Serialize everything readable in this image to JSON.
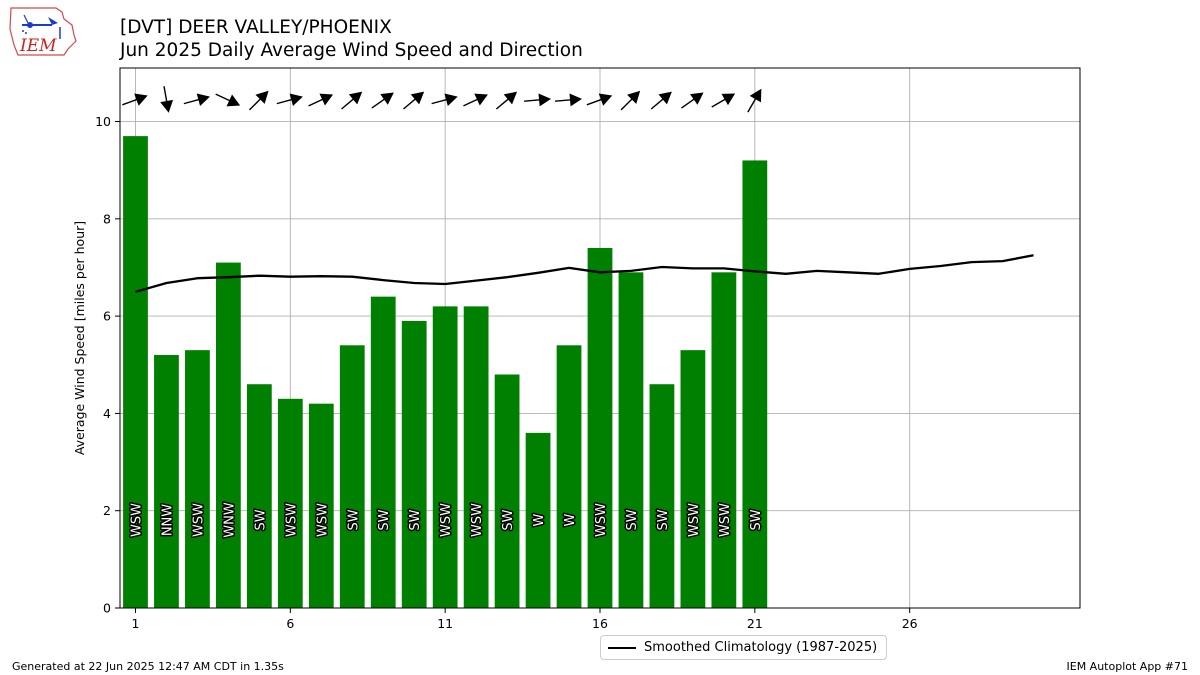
{
  "logo_text": "IEM",
  "title_line1": "[DVT] DEER VALLEY/PHOENIX",
  "title_line2": "Jun 2025 Daily Average Wind Speed and Direction",
  "footer_left": "Generated at 22 Jun 2025 12:47 AM CDT in 1.35s",
  "footer_right": "IEM Autoplot App #71",
  "legend_label": "Smoothed Climatology (1987-2025)",
  "colors": {
    "bar": "#008000",
    "clim": "#000000",
    "grid": "#b0b0b0",
    "arrow": "#000000"
  },
  "chart_data": {
    "type": "bar",
    "ylabel": "Average Wind Speed [miles per hour]",
    "xlabel": "",
    "ylim": [
      0,
      11.1
    ],
    "xlim": [
      0.5,
      31.5
    ],
    "xticks": [
      1,
      6,
      11,
      16,
      21,
      26
    ],
    "yticks": [
      0,
      2,
      4,
      6,
      8,
      10
    ],
    "grid": true,
    "legend_position": "below",
    "days": [
      1,
      2,
      3,
      4,
      5,
      6,
      7,
      8,
      9,
      10,
      11,
      12,
      13,
      14,
      15,
      16,
      17,
      18,
      19,
      20,
      21
    ],
    "values": [
      9.7,
      5.2,
      5.3,
      7.1,
      4.6,
      4.3,
      4.2,
      5.4,
      6.4,
      5.9,
      6.2,
      6.2,
      4.8,
      3.6,
      5.4,
      7.4,
      6.9,
      4.6,
      5.3,
      6.9,
      9.2
    ],
    "directions": [
      "WSW",
      "NNW",
      "WSW",
      "WNW",
      "SW",
      "WSW",
      "WSW",
      "SW",
      "SW",
      "SW",
      "WSW",
      "WSW",
      "SW",
      "W",
      "W",
      "WSW",
      "SW",
      "SW",
      "WSW",
      "WSW",
      "SW"
    ],
    "arrow_angles_deg": [
      20,
      -80,
      15,
      -25,
      45,
      15,
      25,
      40,
      35,
      40,
      15,
      25,
      40,
      5,
      5,
      20,
      45,
      40,
      35,
      30,
      60
    ],
    "climatology": {
      "name": "Smoothed Climatology (1987-2025)",
      "days": [
        1,
        2,
        3,
        4,
        5,
        6,
        7,
        8,
        9,
        10,
        11,
        12,
        13,
        14,
        15,
        16,
        17,
        18,
        19,
        20,
        21,
        22,
        23,
        24,
        25,
        26,
        27,
        28,
        29,
        30
      ],
      "values": [
        6.5,
        6.68,
        6.78,
        6.8,
        6.83,
        6.81,
        6.82,
        6.81,
        6.74,
        6.68,
        6.66,
        6.73,
        6.8,
        6.89,
        6.99,
        6.9,
        6.93,
        7.01,
        6.98,
        6.98,
        6.92,
        6.87,
        6.93,
        6.9,
        6.87,
        6.97,
        7.03,
        7.11,
        7.13,
        7.25
      ]
    }
  }
}
